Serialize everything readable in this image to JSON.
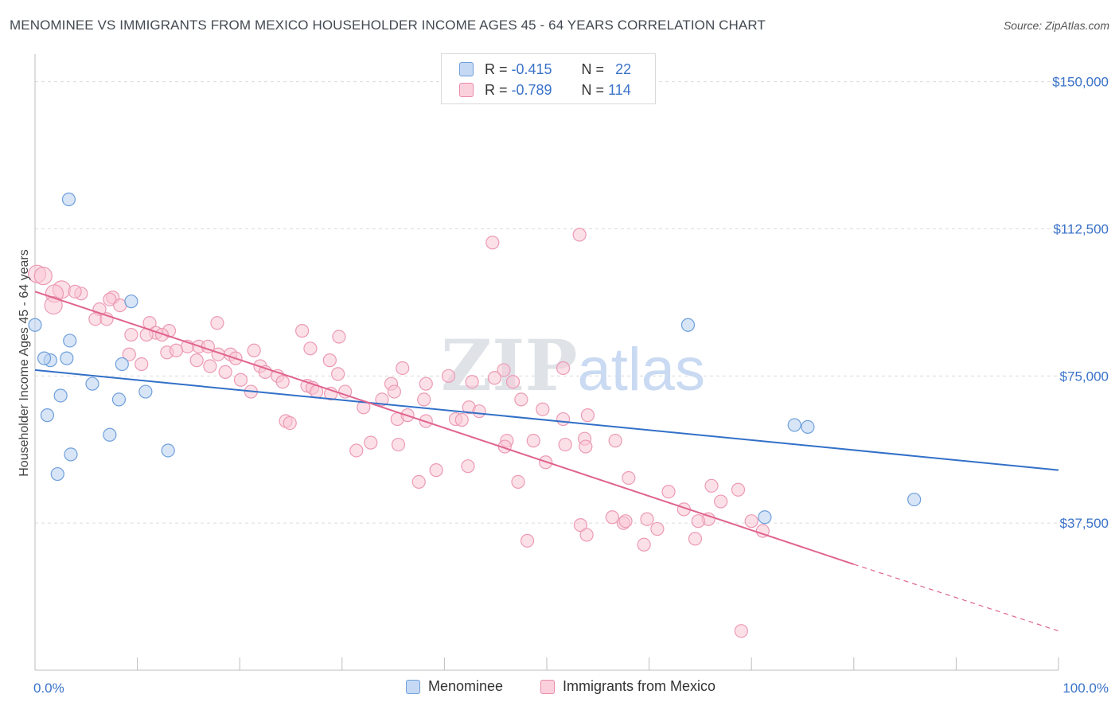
{
  "title": "MENOMINEE VS IMMIGRANTS FROM MEXICO HOUSEHOLDER INCOME AGES 45 - 64 YEARS CORRELATION CHART",
  "source": "Source: ZipAtlas.com",
  "watermark": "ZIPatlas",
  "legend": {
    "rows": [
      {
        "r_label": "R =",
        "r_value": "-0.415",
        "n_label": "N =",
        "n_value": "22",
        "color": "#a9c6ef",
        "edge": "#6f9fdc"
      },
      {
        "r_label": "R =",
        "r_value": "-0.789",
        "n_label": "N =",
        "n_value": "114",
        "color": "#f7b9cc",
        "edge": "#e88aa8"
      }
    ]
  },
  "bottom_legend": {
    "series1": "Menominee",
    "series2": "Immigrants from Mexico"
  },
  "colors": {
    "blue_fill": "#a9c6ef",
    "blue_line": "#3270c8",
    "pink_fill": "#f7b9cc",
    "pink_line": "#e0648f",
    "grid": "#dcdcdc",
    "tick_text": "#3b73c9"
  },
  "chart_data": {
    "type": "scatter",
    "title": "MENOMINEE VS IMMIGRANTS FROM MEXICO HOUSEHOLDER INCOME AGES 45 - 64 YEARS CORRELATION CHART",
    "xlabel": "",
    "ylabel": "Householder Income Ages 45 - 64 years",
    "xlim": [
      0,
      100
    ],
    "ylim": [
      0,
      155000
    ],
    "x_tick_labels": [
      "0.0%",
      "100.0%"
    ],
    "y_ticks": [
      37500,
      75000,
      112500,
      150000
    ],
    "y_tick_labels": [
      "$37,500",
      "$75,000",
      "$112,500",
      "$150,000"
    ],
    "series": [
      {
        "name": "Menominee",
        "color": "#a9c6ef",
        "r": -0.415,
        "n": 22,
        "trend": {
          "x0": 0,
          "y0": 76500,
          "x1": 100,
          "y1": 51000
        },
        "points": [
          [
            0,
            88000
          ],
          [
            3.3,
            120000
          ],
          [
            3.4,
            84000
          ],
          [
            1.5,
            79000
          ],
          [
            0.9,
            79500
          ],
          [
            3.1,
            79500
          ],
          [
            8.5,
            78000
          ],
          [
            5.6,
            73000
          ],
          [
            10.8,
            71000
          ],
          [
            2.5,
            70000
          ],
          [
            8.2,
            69000
          ],
          [
            1.2,
            65000
          ],
          [
            7.3,
            60000
          ],
          [
            13,
            56000
          ],
          [
            3.5,
            55000
          ],
          [
            2.2,
            50000
          ],
          [
            9.4,
            94000
          ],
          [
            63.8,
            88000
          ],
          [
            74.2,
            62500
          ],
          [
            75.5,
            62000
          ],
          [
            71.3,
            39000
          ],
          [
            85.9,
            43500
          ]
        ]
      },
      {
        "name": "Immigrants from Mexico",
        "color": "#f7b9cc",
        "r": -0.789,
        "n": 114,
        "trend": {
          "x0": 0,
          "y0": 96500,
          "x1": 80,
          "y1": 27000,
          "dash_x1": 100,
          "dash_y1": 10000
        },
        "points": [
          [
            0.2,
            101000
          ],
          [
            0.8,
            100500
          ],
          [
            2.6,
            97000
          ],
          [
            1.9,
            96000
          ],
          [
            4.5,
            96000
          ],
          [
            3.9,
            96500
          ],
          [
            7.6,
            95000
          ],
          [
            7.3,
            94500
          ],
          [
            1.8,
            93000
          ],
          [
            8.3,
            93000
          ],
          [
            6.3,
            92000
          ],
          [
            5.9,
            89500
          ],
          [
            7,
            89500
          ],
          [
            11.2,
            88500
          ],
          [
            17.8,
            88500
          ],
          [
            11.8,
            86000
          ],
          [
            13.1,
            86500
          ],
          [
            9.4,
            85500
          ],
          [
            10.9,
            85500
          ],
          [
            12.4,
            85500
          ],
          [
            26.1,
            86500
          ],
          [
            29.7,
            85000
          ],
          [
            14.9,
            82500
          ],
          [
            16,
            82500
          ],
          [
            16.9,
            82500
          ],
          [
            26.9,
            82000
          ],
          [
            21.4,
            81500
          ],
          [
            12.9,
            81000
          ],
          [
            9.2,
            80500
          ],
          [
            17.9,
            80500
          ],
          [
            19.1,
            80500
          ],
          [
            28.8,
            79000
          ],
          [
            15.8,
            79000
          ],
          [
            10.4,
            78000
          ],
          [
            17.1,
            77500
          ],
          [
            22,
            77500
          ],
          [
            35.9,
            77000
          ],
          [
            45.8,
            76500
          ],
          [
            51.6,
            77000
          ],
          [
            40.4,
            75000
          ],
          [
            18.6,
            76000
          ],
          [
            22.5,
            76000
          ],
          [
            23.7,
            75000
          ],
          [
            20.1,
            74000
          ],
          [
            24.2,
            73500
          ],
          [
            34.8,
            73000
          ],
          [
            38.2,
            73000
          ],
          [
            42.7,
            73500
          ],
          [
            46.7,
            73500
          ],
          [
            26.6,
            72500
          ],
          [
            27.1,
            72000
          ],
          [
            27.5,
            71000
          ],
          [
            21.1,
            71000
          ],
          [
            30.3,
            71000
          ],
          [
            42.4,
            67000
          ],
          [
            47.5,
            69000
          ],
          [
            33.9,
            69000
          ],
          [
            38,
            69000
          ],
          [
            32.1,
            67000
          ],
          [
            43.4,
            66000
          ],
          [
            49.6,
            66500
          ],
          [
            35.4,
            64000
          ],
          [
            41.1,
            64000
          ],
          [
            38.2,
            63500
          ],
          [
            24.5,
            63500
          ],
          [
            24.9,
            63000
          ],
          [
            51.6,
            64000
          ],
          [
            53.7,
            59000
          ],
          [
            46.1,
            58500
          ],
          [
            32.8,
            58000
          ],
          [
            35.5,
            57500
          ],
          [
            48.7,
            58500
          ],
          [
            56.7,
            58500
          ],
          [
            45.9,
            57000
          ],
          [
            51.8,
            57500
          ],
          [
            53.8,
            57000
          ],
          [
            31.4,
            56000
          ],
          [
            49.9,
            53000
          ],
          [
            42.3,
            52000
          ],
          [
            39.2,
            51000
          ],
          [
            47.2,
            48000
          ],
          [
            37.5,
            48000
          ],
          [
            58,
            49000
          ],
          [
            68.7,
            46000
          ],
          [
            61.9,
            45500
          ],
          [
            67,
            43000
          ],
          [
            63.4,
            41000
          ],
          [
            56.4,
            39000
          ],
          [
            57.5,
            37500
          ],
          [
            60.8,
            36000
          ],
          [
            57.7,
            38000
          ],
          [
            65.8,
            38500
          ],
          [
            70,
            38000
          ],
          [
            59.8,
            38500
          ],
          [
            53.3,
            37000
          ],
          [
            53.9,
            34500
          ],
          [
            48.1,
            33000
          ],
          [
            59.5,
            32000
          ],
          [
            71.1,
            35500
          ],
          [
            64.5,
            33500
          ],
          [
            64.8,
            38000
          ],
          [
            44.7,
            109000
          ],
          [
            53.2,
            111000
          ],
          [
            69,
            10000
          ],
          [
            13.8,
            81500
          ],
          [
            35.1,
            71000
          ],
          [
            44.9,
            74500
          ],
          [
            28.9,
            70500
          ],
          [
            19.6,
            79500
          ],
          [
            36.4,
            65000
          ],
          [
            54,
            65000
          ],
          [
            66.1,
            47000
          ],
          [
            29.6,
            75500
          ],
          [
            41.7,
            63800
          ]
        ]
      }
    ]
  }
}
